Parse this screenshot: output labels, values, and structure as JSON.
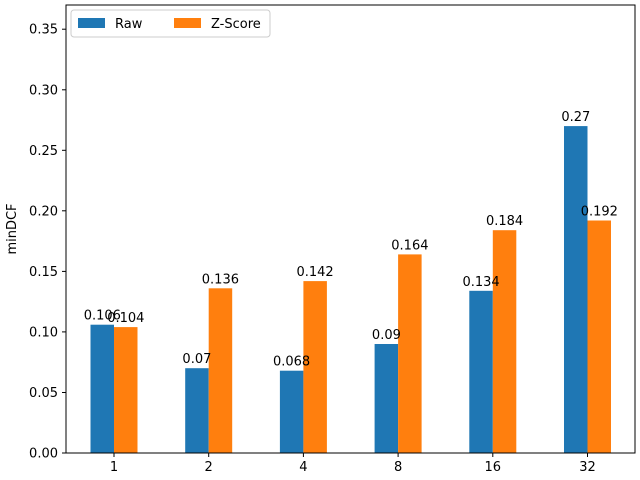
{
  "chart_data": {
    "type": "bar",
    "categories": [
      "1",
      "2",
      "4",
      "8",
      "16",
      "32"
    ],
    "series": [
      {
        "name": "Raw",
        "values": [
          0.106,
          0.07,
          0.068,
          0.09,
          0.134,
          0.27
        ],
        "color": "#1f77b4"
      },
      {
        "name": "Z-Score",
        "values": [
          0.104,
          0.136,
          0.142,
          0.164,
          0.184,
          0.192
        ],
        "color": "#ff7f0e"
      }
    ],
    "data_labels": [
      [
        "0.106",
        "0.07",
        "0.068",
        "0.09",
        "0.134",
        "0.27"
      ],
      [
        "0.104",
        "0.136",
        "0.142",
        "0.164",
        "0.184",
        "0.192"
      ]
    ],
    "title": "",
    "xlabel": "",
    "ylabel": "minDCF",
    "ylim": [
      0,
      0.37
    ],
    "yticks": [
      0.0,
      0.05,
      0.1,
      0.15,
      0.2,
      0.25,
      0.3,
      0.35
    ],
    "ytick_labels": [
      "0.00",
      "0.05",
      "0.10",
      "0.15",
      "0.20",
      "0.25",
      "0.30",
      "0.35"
    ],
    "grid": false,
    "legend_position": "top-left"
  }
}
